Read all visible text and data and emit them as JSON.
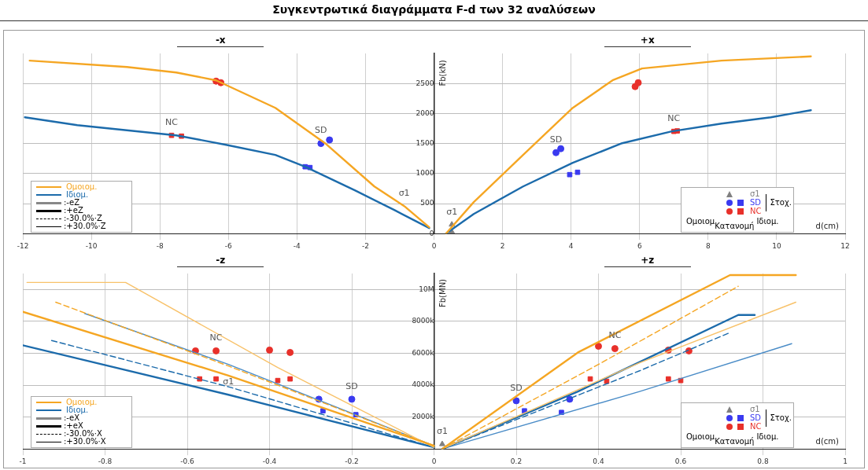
{
  "chart_data": [
    {
      "type": "line",
      "title": "Συγκεντρωτικά διαγράμματα F-d των 32 αναλύσεων",
      "xlabel": "d(cm)",
      "ylabel": "Fb(kN)",
      "xlim": [
        -12,
        12
      ],
      "xticks": [
        -12,
        -10,
        -8,
        -6,
        -4,
        -2,
        0,
        2,
        4,
        6,
        8,
        10,
        12
      ],
      "ylim": [
        0,
        3000
      ],
      "yticks": [
        0,
        500,
        1000,
        1500,
        2000,
        2500
      ],
      "grid": true,
      "legend": "bottom left",
      "series": [
        {
          "name": "Ομοιομ.",
          "color": "#f5a623",
          "x": [
            -11.8,
            -8.96,
            -7.52,
            -6.36,
            -4.63,
            -3.18,
            -1.74,
            -0.87,
            -0.14,
            null,
            0.35,
            1.16,
            2.6,
            4.05,
            5.21,
            6.07,
            8.39,
            11.0
          ],
          "values": [
            2880,
            2775,
            2683,
            2552,
            2094,
            1505,
            785,
            458,
            105,
            null,
            0,
            524,
            1309,
            2094,
            2552,
            2749,
            2880,
            2950
          ]
        },
        {
          "name": "Ιδιομ.",
          "color": "#1c6bab",
          "x": [
            -11.94,
            -10.41,
            -7.52,
            -6.07,
            -4.63,
            -3.76,
            -2.31,
            -1.16,
            -0.14,
            null,
            0.35,
            1.16,
            2.6,
            4.05,
            5.49,
            6.94,
            8.39,
            9.83,
            11.0
          ],
          "values": [
            1937,
            1806,
            1636,
            1479,
            1309,
            1113,
            720,
            393,
            92,
            null,
            0,
            327,
            785,
            1178,
            1505,
            1702,
            1832,
            1937,
            2055
          ]
        },
        {
          "type": "scatter",
          "name": "σ1",
          "color": "#808080",
          "marker": "triangle",
          "x": [
            0.52,
            0.52
          ],
          "values": [
            150,
            30
          ]
        },
        {
          "type": "scatter",
          "name": "SD",
          "color": "#3a3af0",
          "marker": "circle",
          "x": [
            -3.3,
            -3.05,
            3.56,
            3.7
          ],
          "values": [
            1500,
            1560,
            1348,
            1414
          ]
        },
        {
          "type": "scatter",
          "color": "#3a3af0",
          "marker": "square",
          "x": [
            -3.76,
            -3.62,
            3.96,
            4.19
          ],
          "values": [
            1113,
            1100,
            982,
            1021
          ]
        },
        {
          "type": "scatter",
          "name": "NC",
          "color": "#e8302a",
          "marker": "circle",
          "x": [
            -6.36,
            -6.22,
            5.87,
            5.96
          ],
          "values": [
            2539,
            2513,
            2448,
            2513
          ]
        },
        {
          "type": "scatter",
          "color": "#e8302a",
          "marker": "square",
          "x": [
            -7.66,
            -7.37,
            7.0,
            7.1
          ],
          "values": [
            1636,
            1623,
            1702,
            1710
          ]
        }
      ],
      "annotations": [
        "-x",
        "+x",
        ":-eZ",
        ":+eZ",
        ":-30.0%·Z",
        ":+30.0%·Z",
        "Στοχ.",
        "Ομοιομ",
        "Κατανομή",
        "Ιδιομ.",
        {
          "text": "SD",
          "x": -3.3,
          "y": 1500
        },
        {
          "text": "SD",
          "x": 3.56,
          "y": 1348
        },
        {
          "text": "NC",
          "x": -7.66,
          "y": 1636
        },
        {
          "text": "NC",
          "x": 7.0,
          "y": 1702
        },
        {
          "text": "σ1",
          "x": 0.52,
          "y": 150
        },
        {
          "text": "σ1",
          "x": -0.87,
          "y": 458
        }
      ]
    },
    {
      "type": "line",
      "xlabel": "d(cm)",
      "ylabel": "Fb(MN)",
      "xlim": [
        -1,
        1
      ],
      "xticks": [
        -1,
        -0.8,
        -0.6,
        -0.4,
        -0.2,
        0,
        0.2,
        0.4,
        0.6,
        0.8,
        1
      ],
      "ylim": [
        0,
        11000000
      ],
      "yticks": [
        {
          "value": 2000000,
          "label": "2000k"
        },
        {
          "value": 4000000,
          "label": "4000k"
        },
        {
          "value": 6000000,
          "label": "6000k"
        },
        {
          "value": 8000000,
          "label": "8000k"
        },
        {
          "value": 10000000,
          "label": "10M"
        }
      ],
      "grid": true,
      "legend": "bottom left",
      "series": [
        {
          "name": "Ομοιομ.",
          "color": "#f5a623",
          "x": [
            -1,
            -0.5,
            0,
            null,
            0.02,
            0.35,
            0.72,
            0.88
          ],
          "values": [
            8600000,
            4600000,
            200000,
            null,
            0,
            6050000,
            10900000,
            10900000
          ]
        },
        {
          "color": "#f8c26a",
          "x": [
            -0.99,
            -0.75,
            -0.38,
            0,
            null,
            0.02,
            0.5,
            0.88
          ],
          "values": [
            10440000,
            10440000,
            5100000,
            100000,
            null,
            0,
            5400000,
            9200000
          ]
        },
        {
          "color": "#f5a623",
          "line_style": "dashed",
          "x": [
            -0.92,
            -0.5,
            0,
            null,
            0.02,
            0.4,
            0.74
          ],
          "values": [
            9200000,
            5200000,
            200000,
            null,
            0,
            5300000,
            10200000
          ]
        },
        {
          "name": "Ιδιομ.",
          "color": "#1c6bab",
          "x": [
            -1,
            -0.5,
            0,
            null,
            0.02,
            0.35,
            0.74,
            0.78
          ],
          "values": [
            6500000,
            3400000,
            100000,
            null,
            0,
            3600000,
            8400000,
            8400000
          ]
        },
        {
          "color": "#4a8cc7",
          "x": [
            -0.85,
            -0.5,
            0,
            null,
            0.02,
            0.5,
            0.87
          ],
          "values": [
            8500000,
            5300000,
            200000,
            null,
            0,
            3600000,
            6600000
          ]
        },
        {
          "color": "#1c6bab",
          "line_style": "dashed",
          "x": [
            -0.93,
            -0.5,
            0,
            null,
            0.02,
            0.5,
            0.72
          ],
          "values": [
            6800000,
            3900000,
            100000,
            null,
            0,
            4900000,
            7300000
          ]
        },
        {
          "type": "scatter",
          "name": "σ1",
          "color": "#808080",
          "marker": "triangle",
          "x": [
            0.02
          ],
          "values": [
            300000
          ]
        },
        {
          "type": "scatter",
          "name": "SD",
          "color": "#3a3af0",
          "marker": "circle",
          "x": [
            -0.28,
            -0.2,
            0.2,
            0.33
          ],
          "values": [
            3120000,
            3120000,
            3020000,
            3120000
          ]
        },
        {
          "type": "scatter",
          "color": "#3a3af0",
          "marker": "square",
          "x": [
            -0.27,
            -0.19,
            0.22,
            0.31
          ],
          "values": [
            2390000,
            2150000,
            2390000,
            2290000
          ]
        },
        {
          "type": "scatter",
          "name": "NC",
          "color": "#e8302a",
          "marker": "circle",
          "x": [
            -0.58,
            -0.53,
            -0.4,
            -0.35,
            0.4,
            0.44,
            0.57,
            0.62
          ],
          "values": [
            6150000,
            6150000,
            6200000,
            6050000,
            6440000,
            6290000,
            6200000,
            6150000
          ]
        },
        {
          "type": "scatter",
          "color": "#e8302a",
          "marker": "square",
          "x": [
            -0.57,
            -0.53,
            -0.38,
            -0.35,
            0.38,
            0.42,
            0.57,
            0.6
          ],
          "values": [
            4390000,
            4390000,
            4290000,
            4390000,
            4390000,
            4240000,
            4390000,
            4290000
          ]
        }
      ],
      "annotations": [
        "-z",
        "+z",
        ":-eX",
        ":+eX",
        ":-30.0%·X",
        ":+30.0%·X",
        "Στοχ.",
        "Ομοιομ",
        "Κατανομή",
        "Ιδιομ.",
        {
          "text": "NC",
          "x": -0.53,
          "y": 6150000
        },
        {
          "text": "SD",
          "x": -0.2,
          "y": 3120000
        },
        {
          "text": "NC",
          "x": 0.44,
          "y": 6290000
        },
        {
          "text": "SD",
          "x": 0.2,
          "y": 3020000
        },
        {
          "text": "σ1",
          "x": 0.02,
          "y": 300000
        },
        {
          "text": "σ1",
          "x": -0.5,
          "y": 3400000
        }
      ]
    }
  ]
}
